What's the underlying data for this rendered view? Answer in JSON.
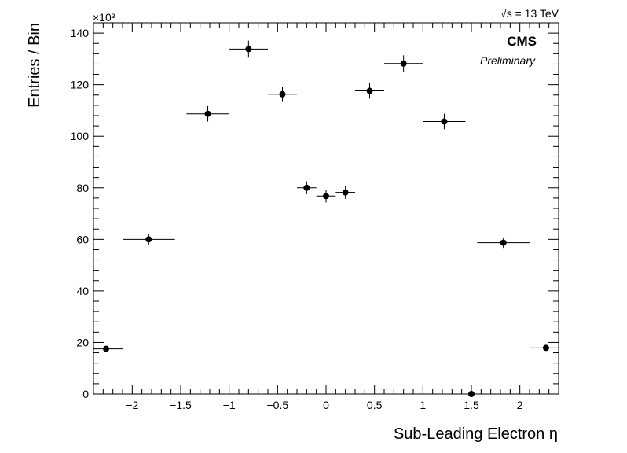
{
  "chart_data": {
    "type": "scatter",
    "xlabel": "Sub-Leading Electron η",
    "ylabel": "Entries / Bin",
    "y_multiplier": "×10³",
    "xlim": [
      -2.4,
      2.4
    ],
    "ylim": [
      0,
      144
    ],
    "x_ticks": [
      -2,
      -1.5,
      -1,
      -0.5,
      0,
      0.5,
      1,
      1.5,
      2
    ],
    "x_tick_labels": [
      "−2",
      "−1.5",
      "−1",
      "−0.5",
      "0",
      "0.5",
      "1",
      "1.5",
      "2"
    ],
    "y_ticks": [
      0,
      20,
      40,
      60,
      80,
      100,
      120,
      140
    ],
    "y_tick_labels": [
      "0",
      "20",
      "40",
      "60",
      "80",
      "100",
      "120",
      "140"
    ],
    "grid": false,
    "experiment_label": "CMS",
    "status_label": "Preliminary",
    "energy_label": "√s = 13 TeV",
    "points": [
      {
        "xlo": -2.4,
        "xhi": -2.1,
        "x": -2.27,
        "y": 17.5,
        "yerr": 1.0
      },
      {
        "xlo": -2.1,
        "xhi": -1.56,
        "x": -1.83,
        "y": 60.0,
        "yerr": 2.0
      },
      {
        "xlo": -1.44,
        "xhi": -1.0,
        "x": -1.22,
        "y": 108.7,
        "yerr": 3.0
      },
      {
        "xlo": -1.0,
        "xhi": -0.6,
        "x": -0.8,
        "y": 133.8,
        "yerr": 3.3
      },
      {
        "xlo": -0.6,
        "xhi": -0.3,
        "x": -0.45,
        "y": 116.3,
        "yerr": 3.0
      },
      {
        "xlo": -0.3,
        "xhi": -0.1,
        "x": -0.2,
        "y": 80.0,
        "yerr": 2.5
      },
      {
        "xlo": -0.1,
        "xhi": 0.1,
        "x": 0.0,
        "y": 76.8,
        "yerr": 2.5
      },
      {
        "xlo": 0.1,
        "xhi": 0.3,
        "x": 0.2,
        "y": 78.2,
        "yerr": 2.5
      },
      {
        "xlo": 0.3,
        "xhi": 0.6,
        "x": 0.45,
        "y": 117.6,
        "yerr": 3.0
      },
      {
        "xlo": 0.6,
        "xhi": 1.0,
        "x": 0.8,
        "y": 128.2,
        "yerr": 3.2
      },
      {
        "xlo": 1.0,
        "xhi": 1.44,
        "x": 1.22,
        "y": 105.7,
        "yerr": 3.0
      },
      {
        "xlo": 1.44,
        "xhi": 1.56,
        "x": 1.5,
        "y": 0.0,
        "yerr": 0.3
      },
      {
        "xlo": 1.56,
        "xhi": 2.1,
        "x": 1.83,
        "y": 58.7,
        "yerr": 2.0
      },
      {
        "xlo": 2.1,
        "xhi": 2.4,
        "x": 2.27,
        "y": 17.9,
        "yerr": 1.0
      }
    ]
  }
}
